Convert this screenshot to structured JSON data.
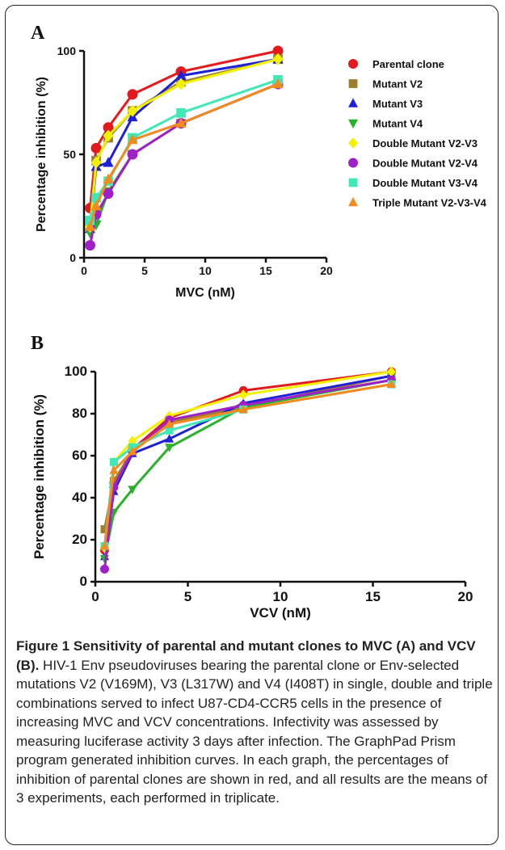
{
  "panels": [
    {
      "letter": "A",
      "chart_data": {
        "type": "line",
        "xlabel": "MVC (nM)",
        "ylabel": "Percentage inhibition (%)",
        "xlim": [
          0,
          20
        ],
        "ylim": [
          0,
          100
        ],
        "xticks": [
          0,
          5,
          10,
          15,
          20
        ],
        "yticks": [
          0,
          50,
          100
        ],
        "legend_position": "right",
        "x": [
          0.5,
          1,
          2,
          4,
          8,
          16
        ],
        "series": [
          {
            "name": "Parental clone",
            "color": "#e31a1c",
            "marker": "circle",
            "values": [
              24,
              53,
              63,
              79,
              90,
              100
            ]
          },
          {
            "name": "Mutant V2",
            "color": "#9c7e2e",
            "marker": "square",
            "values": [
              17,
              47,
              58,
              71,
              85,
              96
            ]
          },
          {
            "name": "Mutant V3",
            "color": "#1f1fd6",
            "marker": "triangle-up",
            "values": [
              14,
              44,
              46,
              68,
              88,
              96
            ]
          },
          {
            "name": "Mutant V4",
            "color": "#2ab02a",
            "marker": "triangle-down",
            "values": [
              12,
              16,
              32,
              50,
              65,
              84
            ]
          },
          {
            "name": "Double Mutant V2-V3",
            "color": "#f2f200",
            "marker": "diamond",
            "values": [
              15,
              46,
              59,
              71,
              84,
              96
            ]
          },
          {
            "name": "Double Mutant V2-V4",
            "color": "#a020c8",
            "marker": "circle",
            "values": [
              6,
              21,
              31,
              50,
              65,
              84
            ]
          },
          {
            "name": "Double Mutant V3-V4",
            "color": "#40e8b8",
            "marker": "square",
            "values": [
              18,
              29,
              37,
              58,
              70,
              86
            ]
          },
          {
            "name": "Triple Mutant V2-V3-V4",
            "color": "#f28a1e",
            "marker": "triangle-up",
            "values": [
              15,
              25,
              38,
              57,
              65,
              84
            ]
          }
        ]
      }
    },
    {
      "letter": "B",
      "chart_data": {
        "type": "line",
        "xlabel": "VCV (nM)",
        "ylabel": "Percentage inhibition (%)",
        "xlim": [
          0,
          20
        ],
        "ylim": [
          0,
          100
        ],
        "xticks": [
          0,
          5,
          10,
          15,
          20
        ],
        "yticks": [
          0,
          20,
          40,
          60,
          80,
          100
        ],
        "x": [
          0.5,
          1,
          2,
          4,
          8,
          16
        ],
        "series": [
          {
            "color": "#e31a1c",
            "marker": "circle",
            "values": [
              15,
              47,
              63,
              78,
              91,
              100
            ]
          },
          {
            "color": "#9c7e2e",
            "marker": "square",
            "values": [
              25,
              48,
              62,
              76,
              83,
              98
            ]
          },
          {
            "color": "#1f1fd6",
            "marker": "triangle-up",
            "values": [
              12,
              43,
              61,
              68,
              85,
              98
            ]
          },
          {
            "color": "#2ab02a",
            "marker": "triangle-down",
            "values": [
              11,
              33,
              44,
              64,
              83,
              96
            ]
          },
          {
            "color": "#f2f200",
            "marker": "diamond",
            "values": [
              16,
              57,
              67,
              79,
              89,
              100
            ]
          },
          {
            "color": "#a020c8",
            "marker": "circle",
            "values": [
              6,
              45,
              62,
              77,
              84,
              96
            ]
          },
          {
            "color": "#40e8b8",
            "marker": "square",
            "values": [
              17,
              57,
              64,
              72,
              82,
              94
            ]
          },
          {
            "color": "#f28a1e",
            "marker": "triangle-up",
            "values": [
              17,
              53,
              62,
              75,
              82,
              94
            ]
          }
        ]
      }
    }
  ],
  "caption": {
    "bold": "Figure 1 Sensitivity of parental and mutant clones to MVC (A) and VCV (B).",
    "text": " HIV-1 Env pseudoviruses bearing the parental clone or Env-selected mutations V2 (V169M), V3 (L317W) and V4 (I408T) in single, double and triple combinations served to infect U87-CD4-CCR5 cells in the presence of increasing MVC and VCV concentrations. Infectivity was assessed by measuring luciferase activity 3 days after infection. The GraphPad Prism program generated inhibition curves. In each graph, the percentages of inhibition of parental clones are shown in red, and all results are the means of 3 experiments, each performed in triplicate."
  }
}
